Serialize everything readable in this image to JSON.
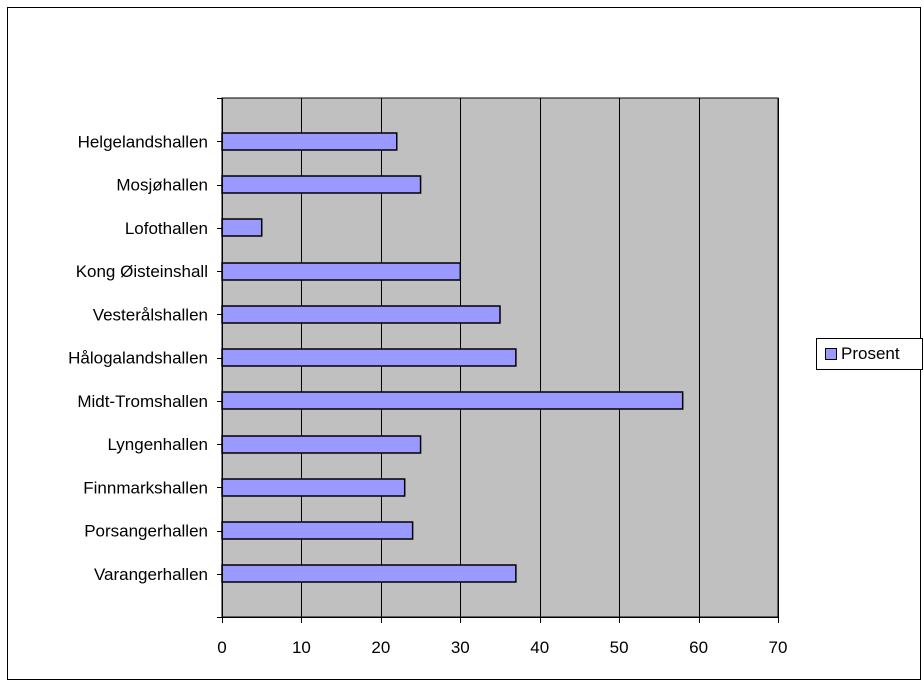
{
  "chart_data": {
    "type": "bar",
    "orientation": "horizontal",
    "categories": [
      "Helgelandshallen",
      "Mosjøhallen",
      "Lofothallen",
      "Kong Øisteinshall",
      "Vesterålshallen",
      "Hålogalandshallen",
      "Midt-Tromshallen",
      "Lyngenhallen",
      "Finnmarkshallen",
      "Porsangerhallen",
      "Varangerhallen"
    ],
    "series": [
      {
        "name": "Prosent",
        "values": [
          22,
          25,
          5,
          30,
          35,
          37,
          58,
          25,
          23,
          24,
          37
        ]
      }
    ],
    "xlim": [
      0,
      70
    ],
    "xticks": [
      0,
      10,
      20,
      30,
      40,
      50,
      60,
      70
    ],
    "grid": true,
    "legend": "right",
    "colors": {
      "bar_fill": "#9999ff",
      "bar_stroke": "#000000",
      "plot_background": "#c0c0c0",
      "gridline": "#000000"
    }
  }
}
